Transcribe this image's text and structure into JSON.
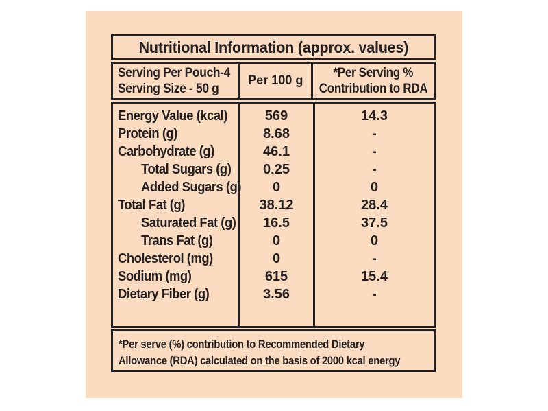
{
  "colors": {
    "page_background": "#ffffff",
    "label_background": "#fbdcc0",
    "border": "#242021",
    "text": "#242021"
  },
  "label": {
    "title": "Nutritional Information (approx. values)",
    "columns": {
      "serving_info_line1": "Serving Per Pouch-4",
      "serving_info_line2": "Serving Size - 50 g",
      "per_100g": "Per 100 g",
      "rda_line1": "*Per Serving %",
      "rda_line2": "Contribution to RDA"
    },
    "rows": [
      {
        "nutrient": "Energy Value (kcal)",
        "indent": false,
        "per_100g": "569",
        "rda_percent": "14.3"
      },
      {
        "nutrient": "Protein (g)",
        "indent": false,
        "per_100g": "8.68",
        "rda_percent": "-"
      },
      {
        "nutrient": "Carbohydrate (g)",
        "indent": false,
        "per_100g": "46.1",
        "rda_percent": "-"
      },
      {
        "nutrient": "Total Sugars (g)",
        "indent": true,
        "per_100g": "0.25",
        "rda_percent": "-"
      },
      {
        "nutrient": "Added Sugars (g)",
        "indent": true,
        "per_100g": "0",
        "rda_percent": "0"
      },
      {
        "nutrient": "Total Fat (g)",
        "indent": false,
        "per_100g": "38.12",
        "rda_percent": "28.4"
      },
      {
        "nutrient": "Saturated Fat (g)",
        "indent": true,
        "per_100g": "16.5",
        "rda_percent": "37.5"
      },
      {
        "nutrient": "Trans Fat (g)",
        "indent": true,
        "per_100g": "0",
        "rda_percent": "0"
      },
      {
        "nutrient": "Cholesterol (mg)",
        "indent": false,
        "per_100g": "0",
        "rda_percent": "-"
      },
      {
        "nutrient": "Sodium (mg)",
        "indent": false,
        "per_100g": "615",
        "rda_percent": "15.4"
      },
      {
        "nutrient": "Dietary Fiber (g)",
        "indent": false,
        "per_100g": "3.56",
        "rda_percent": "-"
      }
    ],
    "footnote_line1": "*Per serve (%) contribution to Recommended Dietary",
    "footnote_line2": "Allowance (RDA) calculated on the basis of 2000 kcal energy"
  }
}
